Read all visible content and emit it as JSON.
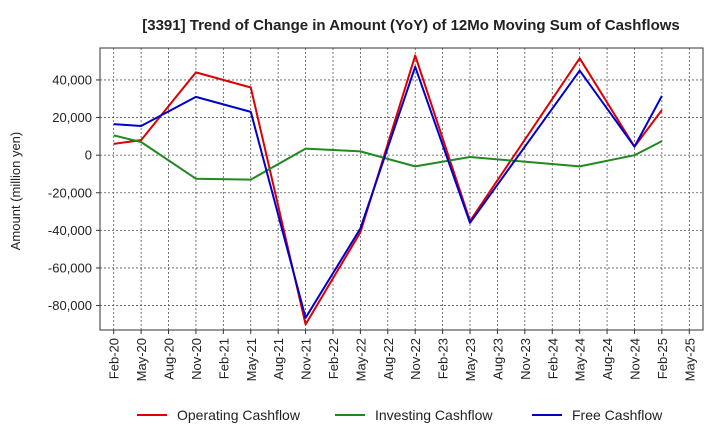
{
  "chart_data": {
    "type": "line",
    "title": "[3391]  Trend of Change in Amount (YoY) of 12Mo Moving Sum of Cashflows",
    "xlabel": "",
    "ylabel": "Amount (million yen)",
    "ylim": [
      -93000,
      57000
    ],
    "yticks": [
      -80000,
      -60000,
      -40000,
      -20000,
      0,
      20000,
      40000
    ],
    "ytick_labels": [
      "-80,000",
      "-60,000",
      "-40,000",
      "-20,000",
      "0",
      "20,000",
      "40,000"
    ],
    "categories": [
      "Feb-20",
      "May-20",
      "Aug-20",
      "Nov-20",
      "Feb-21",
      "May-21",
      "Aug-21",
      "Nov-21",
      "Feb-22",
      "May-22",
      "Aug-22",
      "Nov-22",
      "Feb-23",
      "May-23",
      "Aug-23",
      "Nov-23",
      "Feb-24",
      "May-24",
      "Aug-24",
      "Nov-24",
      "Feb-25",
      "May-25"
    ],
    "grid": true,
    "legend_position": "bottom",
    "series": [
      {
        "name": "Operating Cashflow",
        "color": "#dd0000",
        "values": [
          6000,
          8000,
          null,
          44000,
          null,
          36000,
          null,
          -90000,
          null,
          -41000,
          null,
          53000,
          null,
          -35000,
          null,
          null,
          null,
          51500,
          null,
          4500,
          24000,
          null
        ]
      },
      {
        "name": "Investing Cashflow",
        "color": "#228822",
        "values": [
          10500,
          7000,
          null,
          -12500,
          null,
          -13000,
          null,
          3500,
          null,
          2000,
          null,
          -6000,
          null,
          -1000,
          null,
          null,
          null,
          -6000,
          null,
          0,
          7500,
          null
        ]
      },
      {
        "name": "Free Cashflow",
        "color": "#0000cc",
        "values": [
          16500,
          15500,
          null,
          31000,
          null,
          23000,
          null,
          -86500,
          null,
          -39000,
          null,
          47000,
          null,
          -36000,
          null,
          null,
          null,
          45000,
          null,
          4500,
          31500,
          null
        ]
      }
    ]
  }
}
